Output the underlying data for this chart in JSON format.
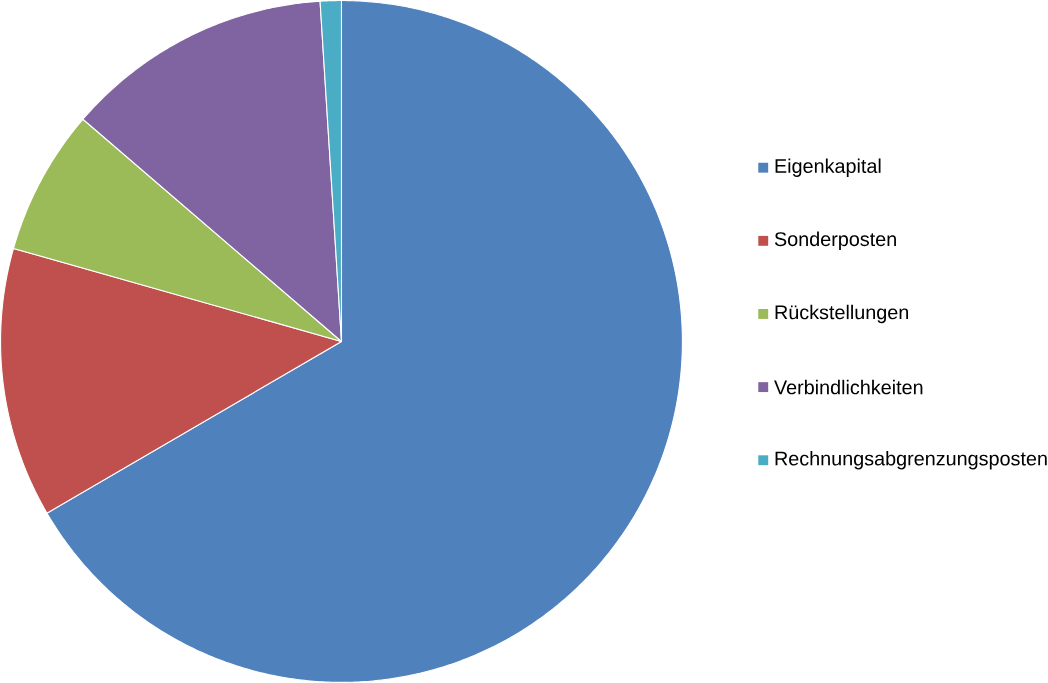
{
  "chart_data": {
    "type": "pie",
    "categories": [
      "Eigenkapital",
      "Sonderposten",
      "Rückstellungen",
      "Verbindlichkeiten",
      "Rechnungsabgrenzungsposten"
    ],
    "values": [
      66.6,
      12.8,
      6.9,
      12.7,
      1.0
    ],
    "colors": [
      "#4f81bd",
      "#c0504d",
      "#9bbb59",
      "#8064a2",
      "#4bacc6"
    ],
    "legend": "right"
  }
}
